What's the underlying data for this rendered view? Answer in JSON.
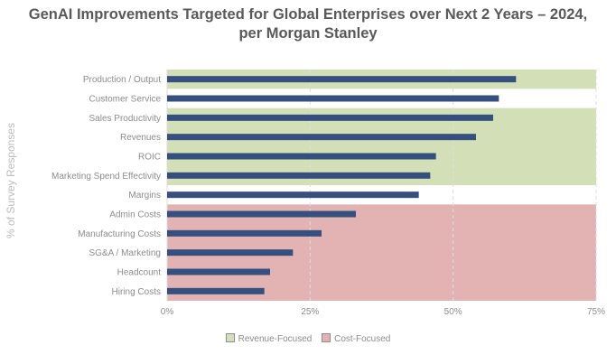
{
  "title_line1": "GenAI Improvements Targeted for Global Enterprises over Next 2 Years – 2024,",
  "title_line2": "per Morgan Stanley",
  "colors": {
    "bar": "#35507f",
    "revenue_band": "#d3e0b7",
    "cost_band": "#e2b3b2",
    "grid": "#dddddd",
    "axis_text": "#8c8c8c"
  },
  "chart_data": {
    "type": "bar",
    "orientation": "horizontal",
    "title": "GenAI Improvements Targeted for Global Enterprises over Next 2 Years – 2024, per Morgan Stanley",
    "ylabel": "% of Survey Responses",
    "xlabel": "",
    "xlim": [
      0,
      75
    ],
    "x_ticks": [
      "0%",
      "25%",
      "50%",
      "75%"
    ],
    "x_tick_values": [
      0,
      25,
      50,
      75
    ],
    "grid": true,
    "categories": [
      "Production / Output",
      "Customer Service",
      "Sales Productivity",
      "Revenues",
      "ROIC",
      "Marketing Spend Effectivity",
      "Margins",
      "Admin Costs",
      "Manufacturing Costs",
      "SG&A / Marketing",
      "Headcount",
      "Hiring Costs"
    ],
    "values": [
      61,
      58,
      57,
      54,
      47,
      46,
      44,
      33,
      27,
      22,
      18,
      17
    ],
    "bands": [
      {
        "name": "Revenue-Focused",
        "categories": [
          "Production / Output"
        ]
      },
      {
        "name": "Revenue-Focused",
        "categories": [
          "Sales Productivity",
          "Revenues",
          "ROIC",
          "Marketing Spend Effectivity"
        ]
      },
      {
        "name": "Cost-Focused",
        "categories": [
          "Admin Costs",
          "Manufacturing Costs",
          "SG&A / Marketing",
          "Headcount",
          "Hiring Costs"
        ]
      }
    ],
    "legend": [
      {
        "label": "Revenue-Focused",
        "color": "#d3e0b7"
      },
      {
        "label": "Cost-Focused",
        "color": "#e2b3b2"
      }
    ],
    "legend_position": "bottom"
  }
}
